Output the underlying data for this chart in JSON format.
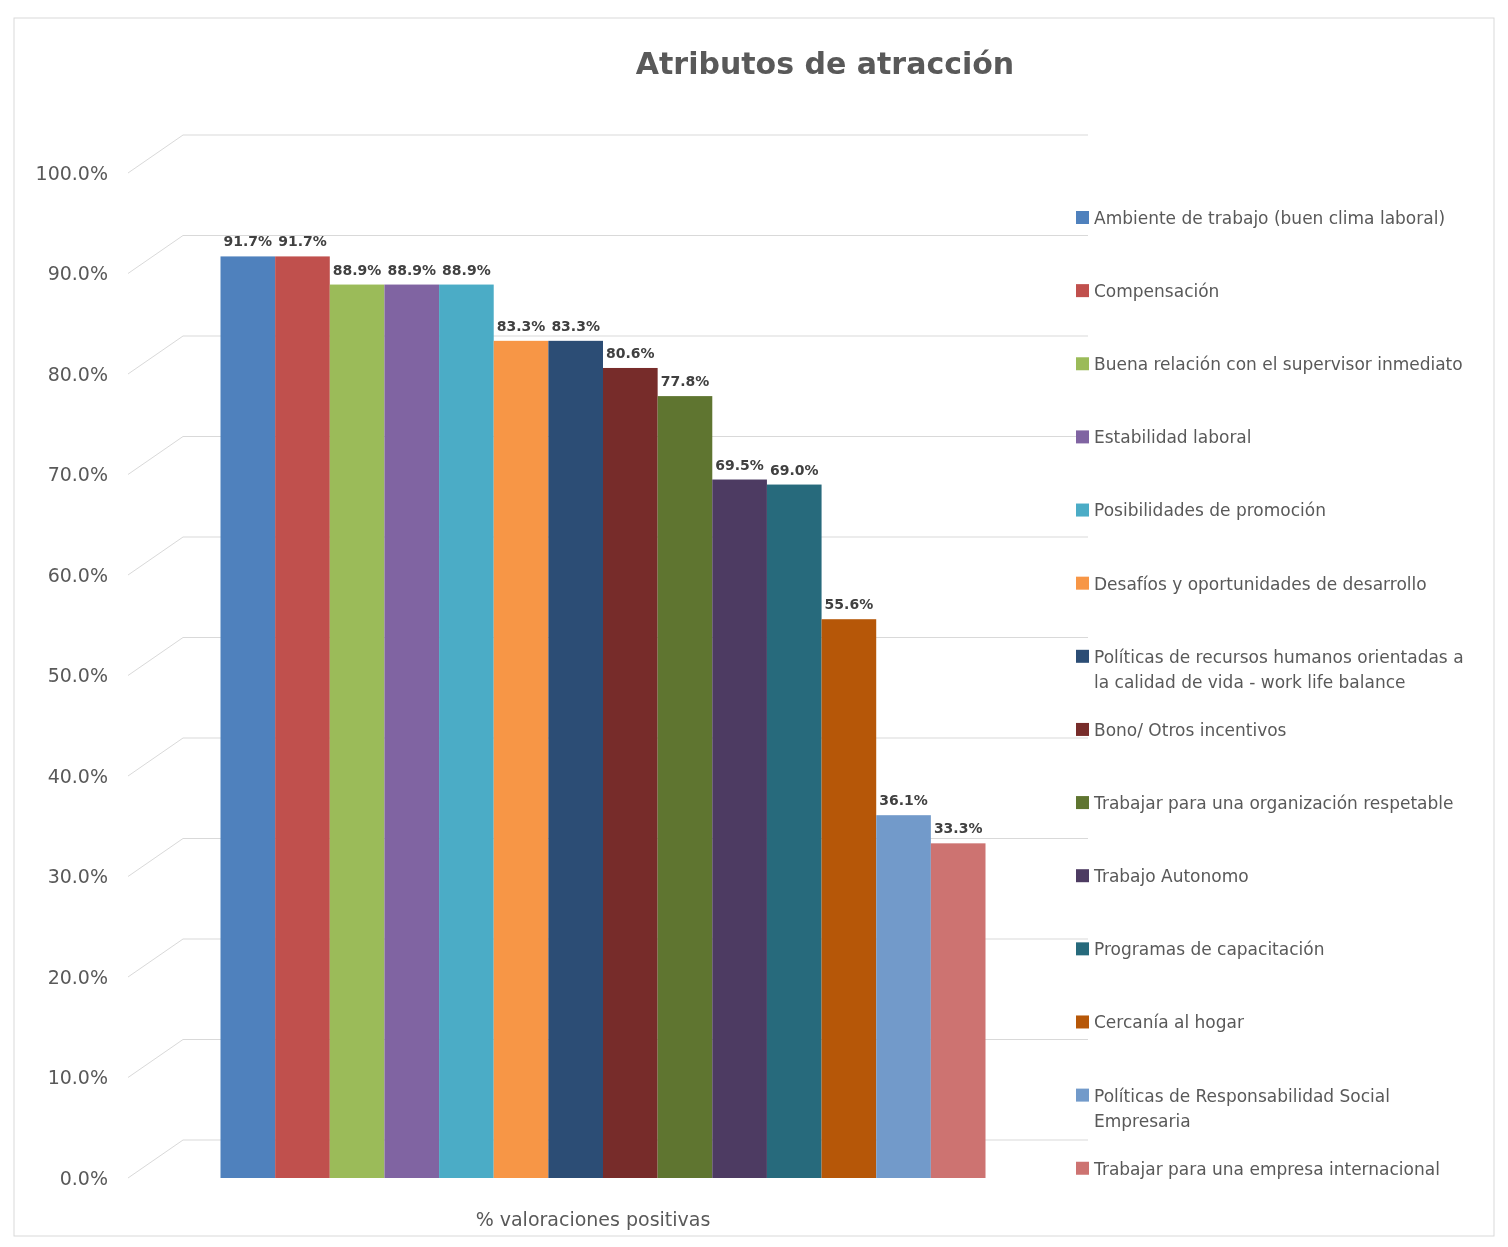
{
  "chart_data": {
    "type": "bar",
    "title": "Atributos de atracción",
    "categories": [
      "% valoraciones positivas"
    ],
    "ylim": [
      0,
      100
    ],
    "yticks": [
      {
        "value": 0,
        "label": "0.0%"
      },
      {
        "value": 10,
        "label": "10.0%"
      },
      {
        "value": 20,
        "label": "20.0%"
      },
      {
        "value": 30,
        "label": "30.0%"
      },
      {
        "value": 40,
        "label": "40.0%"
      },
      {
        "value": 50,
        "label": "50.0%"
      },
      {
        "value": 60,
        "label": "60.0%"
      },
      {
        "value": 70,
        "label": "70.0%"
      },
      {
        "value": 80,
        "label": "80.0%"
      },
      {
        "value": 90,
        "label": "90.0%"
      },
      {
        "value": 100,
        "label": "100.0%"
      }
    ],
    "grid": "y",
    "legend": "right",
    "series": [
      {
        "name": "Ambiente de trabajo (buen clima laboral)",
        "color": "#4f81bd",
        "values": [
          91.7
        ],
        "value_labels": [
          "91.7%"
        ]
      },
      {
        "name": "Compensación",
        "color": "#c0504d",
        "values": [
          91.7
        ],
        "value_labels": [
          "91.7%"
        ]
      },
      {
        "name": "Buena relación con el supervisor inmediato",
        "color": "#9bbb59",
        "values": [
          88.9
        ],
        "value_labels": [
          "88.9%"
        ]
      },
      {
        "name": "Estabilidad laboral",
        "color": "#8064a2",
        "values": [
          88.9
        ],
        "value_labels": [
          "88.9%"
        ]
      },
      {
        "name": "Posibilidades de promoción",
        "color": "#4bacc6",
        "values": [
          88.9
        ],
        "value_labels": [
          "88.9%"
        ]
      },
      {
        "name": "Desafíos y oportunidades de desarrollo",
        "color": "#f79646",
        "values": [
          83.3
        ],
        "value_labels": [
          "83.3%"
        ]
      },
      {
        "name": "Políticas de recursos humanos orientadas a la calidad de vida - work life balance",
        "color": "#2c4d75",
        "values": [
          83.3
        ],
        "value_labels": [
          "83.3%"
        ]
      },
      {
        "name": "Bono/ Otros incentivos",
        "color": "#772c2a",
        "values": [
          80.6
        ],
        "value_labels": [
          "80.6%"
        ]
      },
      {
        "name": "Trabajar para una organización respetable",
        "color": "#5f7530",
        "values": [
          77.8
        ],
        "value_labels": [
          "77.8%"
        ]
      },
      {
        "name": "Trabajo Autonomo",
        "color": "#4d3b62",
        "values": [
          69.5
        ],
        "value_labels": [
          "69.5%"
        ]
      },
      {
        "name": "Programas de capacitación",
        "color": "#276a7c",
        "values": [
          69.0
        ],
        "value_labels": [
          "69.0%"
        ]
      },
      {
        "name": "Cercanía al hogar",
        "color": "#b65708",
        "values": [
          55.6
        ],
        "value_labels": [
          "55.6%"
        ]
      },
      {
        "name": "Políticas de Responsabilidad Social Empresaria",
        "color": "#729aca",
        "values": [
          36.1
        ],
        "value_labels": [
          "36.1%"
        ]
      },
      {
        "name": "Trabajar para una empresa internacional",
        "color": "#cd7371",
        "values": [
          33.3
        ],
        "value_labels": [
          "33.3%"
        ]
      }
    ],
    "xlabel": null
  }
}
